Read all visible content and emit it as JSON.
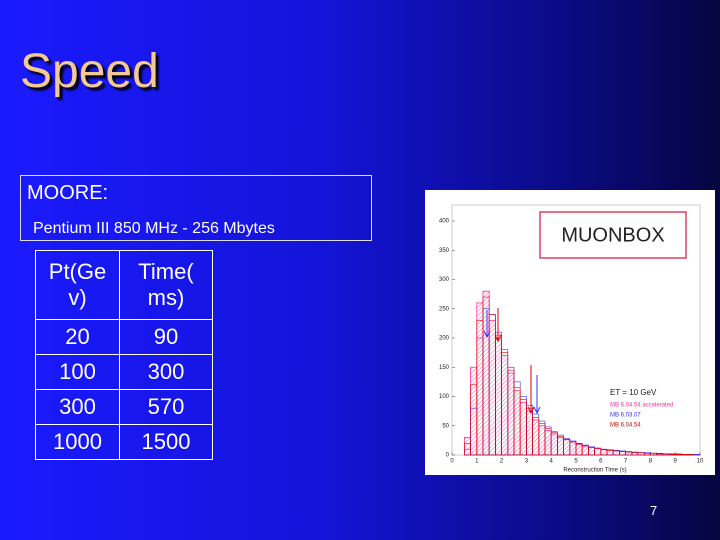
{
  "title": "Speed",
  "box": {
    "heading": "MOORE:",
    "subheading": "Pentium III 850 MHz - 256 Mbytes"
  },
  "table": {
    "header": [
      [
        "Pt(Ge",
        "v)"
      ],
      [
        "Time(",
        "ms)"
      ]
    ],
    "rows": [
      [
        20,
        90
      ],
      [
        100,
        300
      ],
      [
        300,
        570
      ],
      [
        1000,
        1500
      ]
    ]
  },
  "figure": {
    "label": "MUONBOX",
    "chart_data": {
      "type": "histogram",
      "xlabel": "Reconstruction Time (s)",
      "annotation": "ET = 10 GeV",
      "bins": [
        0,
        0.25,
        0.5,
        0.75,
        1,
        1.25,
        1.5,
        1.75,
        2,
        2.25,
        2.5,
        2.75,
        3,
        3.25,
        3.5,
        3.75,
        4,
        4.25,
        4.5,
        4.75,
        5,
        5.25,
        5.5,
        5.75,
        6,
        6.25,
        6.5,
        6.75,
        7,
        7.25,
        7.5,
        7.75,
        8,
        8.25,
        8.5,
        8.75,
        9,
        9.25,
        9.5,
        9.75,
        10
      ],
      "series": [
        {
          "name": "MB 6.04.54 accelerated",
          "color": "#ff3399",
          "values": [
            0,
            0,
            30,
            150,
            260,
            280,
            230,
            200,
            170,
            140,
            110,
            90,
            75,
            60,
            50,
            42,
            36,
            30,
            26,
            22,
            18,
            15,
            13,
            11,
            9,
            8,
            7,
            6,
            5,
            4,
            4,
            3,
            3,
            2,
            2,
            2,
            1,
            1,
            1,
            1
          ]
        },
        {
          "name": "MB 6.03.07",
          "color": "#3333ff",
          "values": [
            0,
            0,
            10,
            80,
            200,
            250,
            240,
            210,
            180,
            150,
            125,
            100,
            85,
            70,
            58,
            48,
            40,
            34,
            28,
            24,
            20,
            17,
            14,
            12,
            10,
            9,
            8,
            7,
            6,
            5,
            4,
            4,
            3,
            3,
            2,
            2,
            2,
            1,
            1,
            1
          ]
        },
        {
          "name": "MB 6.04.54",
          "color": "#e00000",
          "values": [
            0,
            0,
            20,
            120,
            230,
            270,
            240,
            205,
            175,
            145,
            115,
            95,
            80,
            64,
            54,
            45,
            38,
            32,
            27,
            23,
            19,
            16,
            13,
            11,
            9,
            8,
            7,
            6,
            5,
            4,
            4,
            3,
            3,
            2,
            2,
            1,
            1,
            1,
            1,
            0
          ]
        }
      ],
      "xlim": [
        0,
        10
      ],
      "ylim": [
        0,
        400
      ],
      "xticks": [
        0,
        1,
        2,
        3,
        4,
        5,
        6,
        7,
        8,
        9,
        10
      ],
      "yticks": [
        0,
        50,
        100,
        150,
        200,
        250,
        300,
        350,
        400
      ]
    }
  },
  "page_number": "7"
}
